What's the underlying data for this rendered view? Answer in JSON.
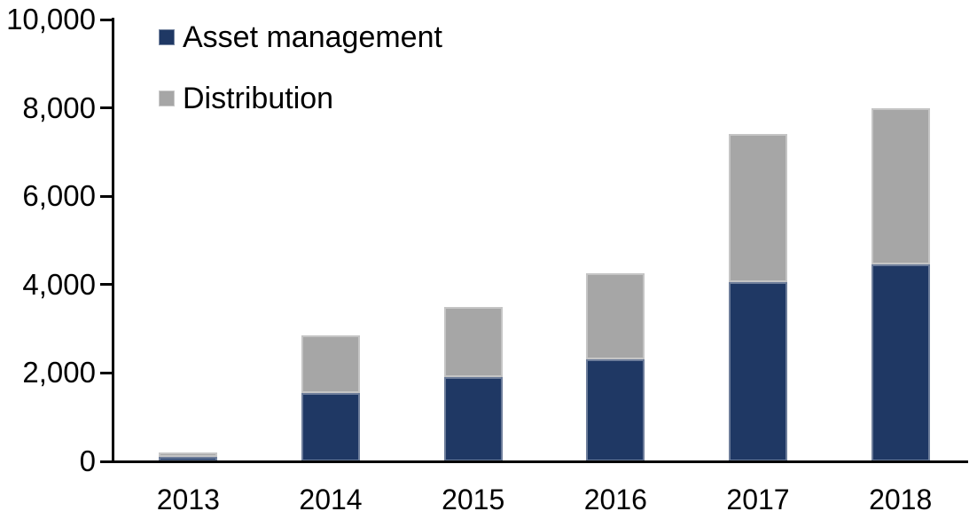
{
  "chart_data": {
    "type": "bar",
    "stacked": true,
    "title": "",
    "xlabel": "",
    "ylabel": "",
    "categories": [
      "2013",
      "2014",
      "2015",
      "2016",
      "2017",
      "2018"
    ],
    "series": [
      {
        "name": "Asset management",
        "color": "#1F3864",
        "values": [
          100,
          1550,
          1900,
          2300,
          4050,
          4450
        ]
      },
      {
        "name": "Distribution",
        "color": "#A6A6A6",
        "values": [
          100,
          1300,
          1600,
          1950,
          3350,
          3550
        ]
      }
    ],
    "stack_totals": [
      200,
      2850,
      3500,
      4250,
      7400,
      8000
    ],
    "ylim": [
      0,
      10000
    ],
    "ytick_interval": 2000,
    "ytick_labels": [
      "0",
      "2,000",
      "4,000",
      "6,000",
      "8,000",
      "10,000"
    ],
    "grid": false,
    "legend_position": "top-left",
    "axis_color": "#000000",
    "background": "#FFFFFF"
  }
}
